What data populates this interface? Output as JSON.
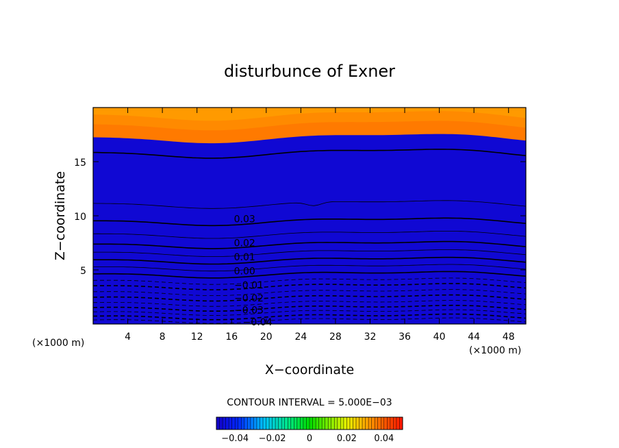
{
  "chart_data": {
    "type": "heatmap",
    "title": "disturbunce of Exner",
    "xlabel": "X−coordinate",
    "ylabel": "Z−coordinate",
    "x_unit": "(×1000 m)",
    "y_unit": "(×1000 m)",
    "xlim": [
      0,
      50
    ],
    "ylim": [
      0,
      20
    ],
    "x_ticks": [
      4,
      8,
      12,
      16,
      20,
      24,
      28,
      32,
      36,
      40,
      44,
      48
    ],
    "y_ticks": [
      5,
      10,
      15
    ],
    "value_range": [
      -0.05,
      0.05
    ],
    "contour_interval_text": "CONTOUR INTERVAL = 5.000E−03",
    "contour_labels": [
      {
        "text": "0.03",
        "x": 17.5,
        "y": 9.7
      },
      {
        "text": "0.02",
        "x": 17.5,
        "y": 7.5
      },
      {
        "text": "0.01",
        "x": 17.5,
        "y": 6.2
      },
      {
        "text": "0.00",
        "x": 17.5,
        "y": 4.9
      },
      {
        "text": "−0.01",
        "x": 18.0,
        "y": 3.6
      },
      {
        "text": "−0.02",
        "x": 18.0,
        "y": 2.4
      },
      {
        "text": "−0.03",
        "x": 18.0,
        "y": 1.3
      },
      {
        "text": "−0.04",
        "x": 19.0,
        "y": 0.2
      }
    ],
    "contour_levels": [
      {
        "value": -0.045,
        "z": 0.35
      },
      {
        "value": -0.04,
        "z": 0.7
      },
      {
        "value": -0.035,
        "z": 1.1
      },
      {
        "value": -0.03,
        "z": 1.5
      },
      {
        "value": -0.025,
        "z": 1.95
      },
      {
        "value": -0.02,
        "z": 2.45
      },
      {
        "value": -0.015,
        "z": 2.95
      },
      {
        "value": -0.01,
        "z": 3.5
      },
      {
        "value": -0.005,
        "z": 4.0
      },
      {
        "value": 0.0,
        "z": 4.6
      },
      {
        "value": 0.005,
        "z": 5.25
      },
      {
        "value": 0.01,
        "z": 5.9
      },
      {
        "value": 0.015,
        "z": 6.6
      },
      {
        "value": 0.02,
        "z": 7.35
      },
      {
        "value": 0.025,
        "z": 8.3
      },
      {
        "value": 0.03,
        "z": 9.5
      },
      {
        "value": 0.035,
        "z": 11.1
      },
      {
        "value": 0.04,
        "z": 15.8
      }
    ],
    "colorbar": {
      "ticks": [
        {
          "value": -0.04,
          "label": "−0.04"
        },
        {
          "value": -0.02,
          "label": "−0.02"
        },
        {
          "value": 0.0,
          "label": "0"
        },
        {
          "value": 0.02,
          "label": "0.02"
        },
        {
          "value": 0.04,
          "label": "0.04"
        }
      ]
    },
    "colors": {
      "low": "#1a1aff",
      "high": "#ff1a00",
      "frame": "#000000"
    },
    "grid": false,
    "legend": "bottom colorbar"
  }
}
